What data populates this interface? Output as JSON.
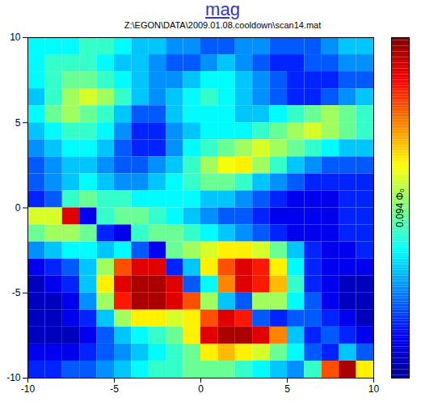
{
  "chart_data": {
    "type": "heatmap",
    "title": "mag",
    "subtitle": "Z:\\EGON\\DATA\\2009.01.08.cooldown\\scan14.mat",
    "xlim": [
      -10,
      10
    ],
    "ylim": [
      -10,
      10
    ],
    "xticks": [
      -10,
      -5,
      0,
      5,
      10
    ],
    "yticks": [
      -10,
      -5,
      0,
      5,
      10
    ],
    "x": [
      -9.5,
      -8.5,
      -7.5,
      -6.5,
      -5.5,
      -4.5,
      -3.5,
      -2.5,
      -1.5,
      -0.5,
      0.5,
      1.5,
      2.5,
      3.5,
      4.5,
      5.5,
      6.5,
      7.5,
      8.5,
      9.5
    ],
    "y": [
      9.5,
      8.5,
      7.5,
      6.5,
      5.5,
      4.5,
      3.5,
      2.5,
      1.5,
      0.5,
      -0.5,
      -1.5,
      -2.5,
      -3.5,
      -4.5,
      -5.5,
      -6.5,
      -7.5,
      -8.5,
      -9.5
    ],
    "values": [
      [
        0.035,
        0.035,
        0.035,
        0.04,
        0.04,
        0.035,
        0.03,
        0.03,
        0.025,
        0.025,
        0.02,
        0.02,
        0.025,
        0.025,
        0.02,
        0.02,
        0.02,
        0.025,
        0.03,
        0.03
      ],
      [
        0.035,
        0.04,
        0.04,
        0.04,
        0.035,
        0.03,
        0.03,
        0.025,
        0.02,
        0.02,
        0.025,
        0.03,
        0.025,
        0.02,
        0.015,
        0.015,
        0.02,
        0.02,
        0.025,
        0.025
      ],
      [
        0.035,
        0.04,
        0.045,
        0.045,
        0.04,
        0.035,
        0.03,
        0.025,
        0.025,
        0.03,
        0.035,
        0.035,
        0.03,
        0.025,
        0.02,
        0.015,
        0.015,
        0.015,
        0.02,
        0.02
      ],
      [
        0.03,
        0.04,
        0.05,
        0.055,
        0.05,
        0.04,
        0.03,
        0.025,
        0.03,
        0.035,
        0.04,
        0.035,
        0.03,
        0.025,
        0.02,
        0.015,
        0.015,
        0.02,
        0.025,
        0.03
      ],
      [
        0.035,
        0.045,
        0.05,
        0.045,
        0.04,
        0.03,
        0.02,
        0.02,
        0.03,
        0.035,
        0.035,
        0.035,
        0.03,
        0.03,
        0.035,
        0.04,
        0.045,
        0.05,
        0.045,
        0.04
      ],
      [
        0.03,
        0.035,
        0.04,
        0.04,
        0.035,
        0.025,
        0.015,
        0.015,
        0.025,
        0.03,
        0.035,
        0.035,
        0.035,
        0.04,
        0.045,
        0.05,
        0.055,
        0.05,
        0.045,
        0.04
      ],
      [
        0.025,
        0.03,
        0.035,
        0.035,
        0.03,
        0.02,
        0.015,
        0.015,
        0.025,
        0.035,
        0.04,
        0.045,
        0.05,
        0.055,
        0.05,
        0.045,
        0.04,
        0.035,
        0.03,
        0.03
      ],
      [
        0.02,
        0.025,
        0.03,
        0.03,
        0.025,
        0.02,
        0.02,
        0.025,
        0.03,
        0.04,
        0.05,
        0.058,
        0.06,
        0.05,
        0.04,
        0.03,
        0.025,
        0.02,
        0.02,
        0.02
      ],
      [
        0.02,
        0.025,
        0.03,
        0.035,
        0.03,
        0.025,
        0.025,
        0.03,
        0.035,
        0.04,
        0.045,
        0.045,
        0.04,
        0.03,
        0.025,
        0.02,
        0.015,
        0.015,
        0.015,
        0.015
      ],
      [
        0.015,
        0.02,
        0.04,
        0.045,
        0.04,
        0.04,
        0.035,
        0.035,
        0.035,
        0.035,
        0.03,
        0.03,
        0.025,
        0.02,
        0.015,
        0.01,
        0.01,
        0.01,
        0.015,
        0.015
      ],
      [
        0.055,
        0.055,
        0.085,
        0.01,
        0.04,
        0.045,
        0.045,
        0.04,
        0.035,
        0.03,
        0.025,
        0.02,
        0.02,
        0.015,
        0.01,
        0.01,
        0.01,
        0.01,
        0.015,
        0.015
      ],
      [
        0.045,
        0.05,
        0.05,
        0.045,
        0.015,
        0.01,
        0.04,
        0.045,
        0.045,
        0.04,
        0.035,
        0.03,
        0.025,
        0.02,
        0.015,
        0.01,
        0.01,
        0.01,
        0.015,
        0.015
      ],
      [
        0.025,
        0.03,
        0.035,
        0.035,
        0.03,
        0.035,
        0.02,
        0.01,
        0.045,
        0.05,
        0.055,
        0.06,
        0.06,
        0.055,
        0.045,
        0.03,
        0.015,
        0.01,
        0.01,
        0.015
      ],
      [
        0.01,
        0.015,
        0.02,
        0.03,
        0.05,
        0.075,
        0.085,
        0.085,
        0.015,
        0.03,
        0.06,
        0.075,
        0.085,
        0.08,
        0.06,
        0.035,
        0.015,
        0.01,
        0.01,
        0.01
      ],
      [
        0.005,
        0.01,
        0.015,
        0.03,
        0.06,
        0.085,
        0.09,
        0.09,
        0.085,
        0.02,
        0.035,
        0.07,
        0.085,
        0.08,
        0.065,
        0.04,
        0.015,
        0.01,
        0.005,
        0.005
      ],
      [
        0.005,
        0.005,
        0.01,
        0.025,
        0.05,
        0.08,
        0.09,
        0.09,
        0.085,
        0.075,
        0.05,
        0.03,
        0.02,
        0.05,
        0.05,
        0.035,
        0.02,
        0.01,
        0.005,
        0.005
      ],
      [
        0.005,
        0.005,
        0.01,
        0.015,
        0.03,
        0.05,
        0.06,
        0.06,
        0.055,
        0.06,
        0.075,
        0.085,
        0.08,
        0.02,
        0.015,
        0.02,
        0.02,
        0.015,
        0.01,
        0.005
      ],
      [
        0.005,
        0.005,
        0.005,
        0.01,
        0.02,
        0.03,
        0.035,
        0.04,
        0.045,
        0.06,
        0.085,
        0.09,
        0.09,
        0.085,
        0.07,
        0.03,
        0.015,
        0.02,
        0.015,
        0.01
      ],
      [
        0.01,
        0.01,
        0.01,
        0.015,
        0.02,
        0.025,
        0.03,
        0.035,
        0.04,
        0.045,
        0.06,
        0.065,
        0.06,
        0.055,
        0.045,
        0.035,
        0.02,
        0.015,
        0.03,
        0.02
      ],
      [
        0.015,
        0.015,
        0.02,
        0.02,
        0.025,
        0.03,
        0.035,
        0.04,
        0.04,
        0.045,
        0.045,
        0.045,
        0.04,
        0.035,
        0.03,
        0.025,
        0.04,
        0.075,
        0.09,
        0.06
      ]
    ],
    "colorbar": {
      "label": "0.094 Φ₀",
      "range": [
        0,
        0.094
      ]
    }
  }
}
